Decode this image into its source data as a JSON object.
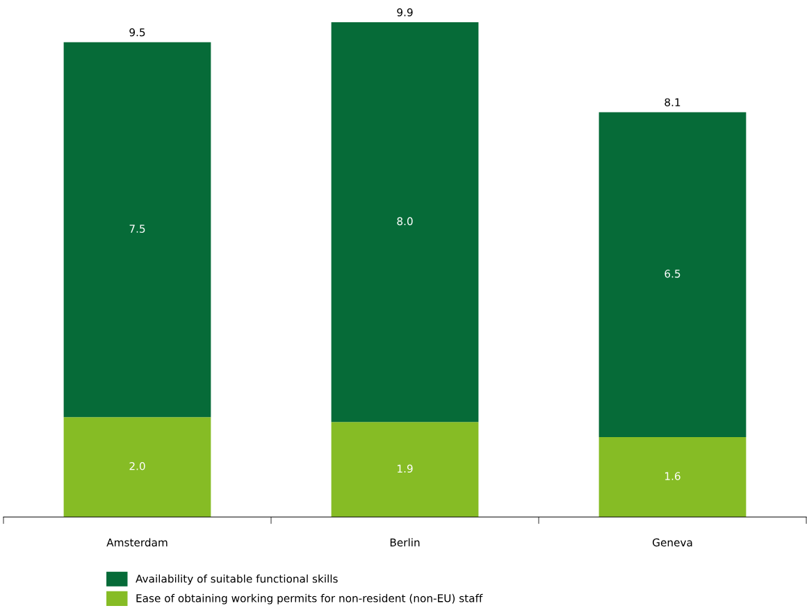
{
  "chart_data": {
    "type": "bar",
    "stacked": true,
    "categories": [
      "Amsterdam",
      "Berlin",
      "Geneva"
    ],
    "series": [
      {
        "name": "Ease of obtaining working permits for non-resident (non-EU) staff",
        "color": "#86bc25",
        "values": [
          2.0,
          1.9,
          1.6
        ],
        "value_labels": [
          "2.0",
          "1.9",
          "1.6"
        ]
      },
      {
        "name": "Availability of suitable functional skills",
        "color": "#066b38",
        "values": [
          7.5,
          8.0,
          6.5
        ],
        "value_labels": [
          "7.5",
          "8.0",
          "6.5"
        ]
      }
    ],
    "totals": [
      "9.5",
      "9.9",
      "8.1"
    ],
    "legend": "bottom"
  }
}
